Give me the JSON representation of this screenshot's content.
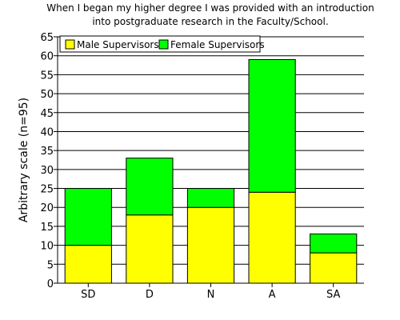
{
  "chart_data": {
    "type": "bar",
    "stacked": true,
    "title_lines": [
      "When I began my higher degree I was provided with an introduction",
      "into postgraduate research in the Faculty/School."
    ],
    "ylabel": "Arbitrary scale (n=95)",
    "xlabel": "",
    "categories": [
      "SD",
      "D",
      "N",
      "A",
      "SA"
    ],
    "series": [
      {
        "name": "Male Supervisors",
        "values": [
          10,
          18,
          20,
          24,
          8
        ],
        "color": "#ffff00"
      },
      {
        "name": "Female Supervisors",
        "values": [
          15,
          15,
          5,
          35,
          5
        ],
        "color": "#00ff00"
      }
    ],
    "ylim": [
      0,
      65
    ],
    "ytick_step": 5,
    "yticks": [
      "0",
      "5",
      "10",
      "15",
      "20",
      "25",
      "30",
      "35",
      "40",
      "45",
      "50",
      "55",
      "60",
      "65"
    ],
    "grid": true,
    "legend_position": "top-left"
  }
}
